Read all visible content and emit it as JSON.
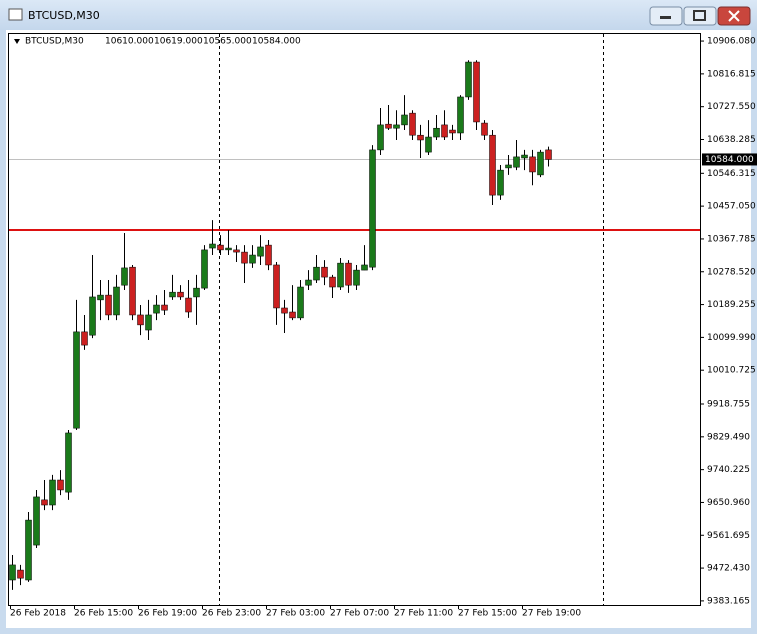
{
  "window": {
    "title": "BTCUSD,M30"
  },
  "chart_data": {
    "type": "candlestick",
    "symbol": "BTCUSD,M30",
    "ohlc_labels": [
      "10610.000",
      "10619.000",
      "10565.000",
      "10584.000"
    ],
    "categories": [
      "26 Feb 2018",
      null,
      null,
      null,
      null,
      null,
      null,
      null,
      "26 Feb 15:00",
      null,
      null,
      null,
      null,
      null,
      null,
      null,
      "26 Feb 19:00",
      null,
      null,
      null,
      null,
      null,
      null,
      null,
      "26 Feb 23:00",
      null,
      null,
      null,
      null,
      null,
      null,
      null,
      "27 Feb 03:00",
      null,
      null,
      null,
      null,
      null,
      null,
      null,
      "27 Feb 07:00",
      null,
      null,
      null,
      null,
      null,
      null,
      null,
      "27 Feb 11:00",
      null,
      null,
      null,
      null,
      null,
      null,
      null,
      "27 Feb 15:00",
      null,
      null,
      null,
      null,
      null,
      null,
      null,
      "27 Feb 19:00",
      null,
      null,
      null
    ],
    "open": [
      9440,
      9467,
      9440,
      9535,
      9658,
      9644,
      9712,
      9679,
      9853,
      10115,
      10106,
      10202,
      10215,
      10161,
      10242,
      10291,
      10161,
      10120,
      10166,
      10188,
      10210,
      10223,
      10207,
      10210,
      10234,
      10343,
      10351,
      10338,
      10338,
      10332,
      10302,
      10321,
      10351,
      10297,
      10180,
      10169,
      10153,
      10242,
      10256,
      10291,
      10264,
      10237,
      10302,
      10242,
      10283,
      10291,
      10610,
      10680,
      10669,
      10678,
      10710,
      10650,
      10604,
      10645,
      10678,
      10664,
      10656,
      10754,
      10849,
      10683,
      10650,
      10487,
      10561,
      10563,
      10588,
      10591,
      10542,
      10610
    ],
    "high": [
      9508,
      9481,
      9625,
      9685,
      9712,
      9726,
      9739,
      9848,
      10202,
      10161,
      10324,
      10256,
      10256,
      10270,
      10384,
      10297,
      10188,
      10202,
      10215,
      10229,
      10270,
      10242,
      10256,
      10270,
      10351,
      10419,
      10378,
      10392,
      10351,
      10351,
      10351,
      10378,
      10365,
      10305,
      10202,
      10242,
      10256,
      10283,
      10324,
      10310,
      10270,
      10316,
      10310,
      10297,
      10351,
      10623,
      10724,
      10732,
      10718,
      10759,
      10718,
      10678,
      10691,
      10705,
      10718,
      10678,
      10759,
      10854,
      10854,
      10691,
      10664,
      10569,
      10596,
      10637,
      10610,
      10610,
      10610,
      10619
    ],
    "low": [
      9413,
      9426,
      9435,
      9527,
      9630,
      9630,
      9671,
      9658,
      9848,
      10066,
      10098,
      10147,
      10147,
      10147,
      10229,
      10147,
      10106,
      10093,
      10147,
      10161,
      10202,
      10202,
      10153,
      10134,
      10229,
      10324,
      10324,
      10324,
      10305,
      10248,
      10289,
      10297,
      10283,
      10134,
      10112,
      10147,
      10147,
      10229,
      10248,
      10242,
      10207,
      10229,
      10221,
      10229,
      10283,
      10283,
      10596,
      10664,
      10637,
      10664,
      10637,
      10588,
      10596,
      10637,
      10637,
      10637,
      10637,
      10746,
      10664,
      10637,
      10460,
      10474,
      10542,
      10555,
      10555,
      10514,
      10536,
      10565
    ],
    "close": [
      9481,
      9445,
      9603,
      9666,
      9644,
      9712,
      9685,
      9840,
      10115,
      10079,
      10210,
      10215,
      10161,
      10237,
      10289,
      10161,
      10134,
      10161,
      10188,
      10174,
      10223,
      10210,
      10169,
      10234,
      10338,
      10354,
      10338,
      10343,
      10332,
      10302,
      10324,
      10346,
      10297,
      10180,
      10166,
      10153,
      10237,
      10256,
      10291,
      10264,
      10237,
      10302,
      10242,
      10283,
      10297,
      10610,
      10678,
      10669,
      10678,
      10705,
      10650,
      10637,
      10645,
      10669,
      10645,
      10656,
      10754,
      10849,
      10686,
      10650,
      10487,
      10555,
      10569,
      10591,
      10596,
      10550,
      10604,
      10584
    ],
    "up_color": "#1a7a1a",
    "down_color": "#cc2020",
    "ylim": [
      9372,
      10928
    ],
    "yticks": [
      {
        "value": 10906.08,
        "label": "10906.080"
      },
      {
        "value": 10816.815,
        "label": "10816.815"
      },
      {
        "value": 10727.55,
        "label": "10727.550"
      },
      {
        "value": 10638.285,
        "label": "10638.285"
      },
      {
        "value": 10546.315,
        "label": "10546.315"
      },
      {
        "value": 10457.05,
        "label": "10457.050"
      },
      {
        "value": 10367.785,
        "label": "10367.785"
      },
      {
        "value": 10278.52,
        "label": "10278.520"
      },
      {
        "value": 10189.255,
        "label": "10189.255"
      },
      {
        "value": 10099.99,
        "label": "10099.990"
      },
      {
        "value": 10010.725,
        "label": "10010.725"
      },
      {
        "value": 9918.755,
        "label": "9918.755"
      },
      {
        "value": 9829.49,
        "label": "9829.490"
      },
      {
        "value": 9740.225,
        "label": "9740.225"
      },
      {
        "value": 9650.96,
        "label": "9650.960"
      },
      {
        "value": 9561.695,
        "label": "9561.695"
      },
      {
        "value": 9472.43,
        "label": "9472.430"
      },
      {
        "value": 9383.165,
        "label": "9383.165"
      }
    ],
    "hline": {
      "value": 10392,
      "color": "#dd1111"
    },
    "current_price": {
      "value": 10584,
      "label": "10584.000"
    }
  }
}
